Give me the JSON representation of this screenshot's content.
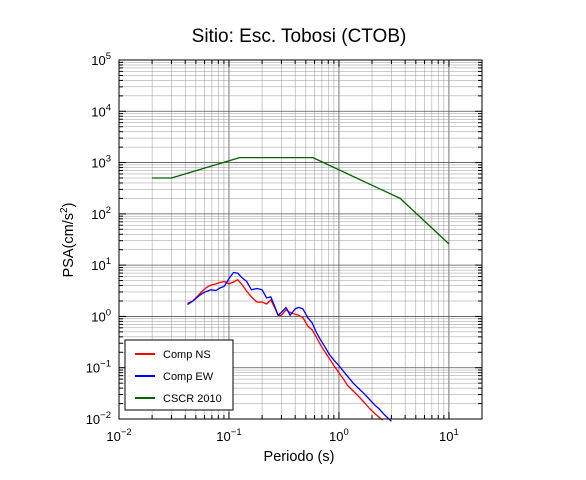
{
  "chart_data": {
    "type": "line",
    "title": "Sitio: Esc. Tobosi (CTOB)",
    "xlabel": "Periodo (s)",
    "ylabel_main": "PSA(cm/s",
    "ylabel_sup": "2",
    "ylabel_tail": ")",
    "x_scale": "log",
    "y_scale": "log",
    "xlim": [
      0.01,
      20
    ],
    "ylim": [
      0.01,
      100000
    ],
    "grid": true,
    "legend_position": "bottom-left",
    "x_ticks": [
      {
        "value": 0.01,
        "base": "10",
        "exp": "−2"
      },
      {
        "value": 0.1,
        "base": "10",
        "exp": "−1"
      },
      {
        "value": 1,
        "base": "10",
        "exp": "0"
      },
      {
        "value": 10,
        "base": "10",
        "exp": "1"
      }
    ],
    "y_ticks": [
      {
        "value": 0.01,
        "base": "10",
        "exp": "−2"
      },
      {
        "value": 0.1,
        "base": "10",
        "exp": "−1"
      },
      {
        "value": 1,
        "base": "10",
        "exp": "0"
      },
      {
        "value": 10,
        "base": "10",
        "exp": "1"
      },
      {
        "value": 100,
        "base": "10",
        "exp": "2"
      },
      {
        "value": 1000,
        "base": "10",
        "exp": "3"
      },
      {
        "value": 10000,
        "base": "10",
        "exp": "4"
      },
      {
        "value": 100000,
        "base": "10",
        "exp": "5"
      }
    ],
    "series": [
      {
        "name": "Comp NS",
        "color": "#ff0000",
        "x": [
          0.042,
          0.047,
          0.052,
          0.057,
          0.063,
          0.069,
          0.076,
          0.083,
          0.091,
          0.1,
          0.11,
          0.12,
          0.13,
          0.145,
          0.16,
          0.18,
          0.2,
          0.22,
          0.24,
          0.26,
          0.28,
          0.3,
          0.33,
          0.36,
          0.4,
          0.43,
          0.47,
          0.52,
          0.57,
          0.62,
          0.68,
          0.75,
          0.82,
          0.9,
          1.0,
          1.1,
          1.2,
          1.35,
          1.5,
          1.7,
          1.9,
          2.1,
          2.3,
          2.5
        ],
        "y": [
          1.8,
          2.0,
          2.5,
          3.1,
          3.7,
          4.1,
          4.3,
          4.6,
          4.8,
          4.3,
          4.7,
          5.2,
          4.3,
          3.1,
          2.4,
          1.9,
          1.9,
          1.75,
          2.1,
          1.5,
          1.05,
          1.05,
          1.35,
          1.2,
          1.1,
          1.05,
          0.95,
          0.65,
          0.55,
          0.4,
          0.28,
          0.2,
          0.15,
          0.11,
          0.08,
          0.06,
          0.045,
          0.035,
          0.028,
          0.021,
          0.016,
          0.013,
          0.011,
          0.0095
        ]
      },
      {
        "name": "Comp EW",
        "color": "#0000ff",
        "x": [
          0.042,
          0.047,
          0.052,
          0.057,
          0.063,
          0.069,
          0.076,
          0.083,
          0.091,
          0.1,
          0.11,
          0.12,
          0.13,
          0.145,
          0.16,
          0.18,
          0.2,
          0.22,
          0.24,
          0.26,
          0.28,
          0.3,
          0.33,
          0.36,
          0.4,
          0.43,
          0.47,
          0.52,
          0.57,
          0.62,
          0.68,
          0.75,
          0.82,
          0.9,
          1.0,
          1.1,
          1.2,
          1.35,
          1.5,
          1.7,
          1.9,
          2.1,
          2.3,
          2.6,
          3.0
        ],
        "y": [
          1.7,
          2.0,
          2.4,
          2.8,
          3.1,
          3.3,
          3.2,
          3.6,
          3.9,
          5.5,
          7.2,
          7.0,
          5.8,
          4.8,
          3.3,
          3.5,
          3.3,
          2.3,
          2.4,
          1.6,
          1.05,
          1.2,
          1.5,
          1.05,
          1.4,
          1.5,
          1.4,
          0.95,
          0.75,
          0.5,
          0.35,
          0.25,
          0.18,
          0.14,
          0.11,
          0.085,
          0.068,
          0.05,
          0.04,
          0.031,
          0.024,
          0.019,
          0.016,
          0.012,
          0.009
        ]
      },
      {
        "name": "CSCR 2010",
        "color": "#006400",
        "x": [
          0.02,
          0.03,
          0.125,
          0.58,
          3.6,
          10.0
        ],
        "y": [
          500,
          500,
          1250,
          1250,
          200,
          26
        ]
      }
    ]
  }
}
